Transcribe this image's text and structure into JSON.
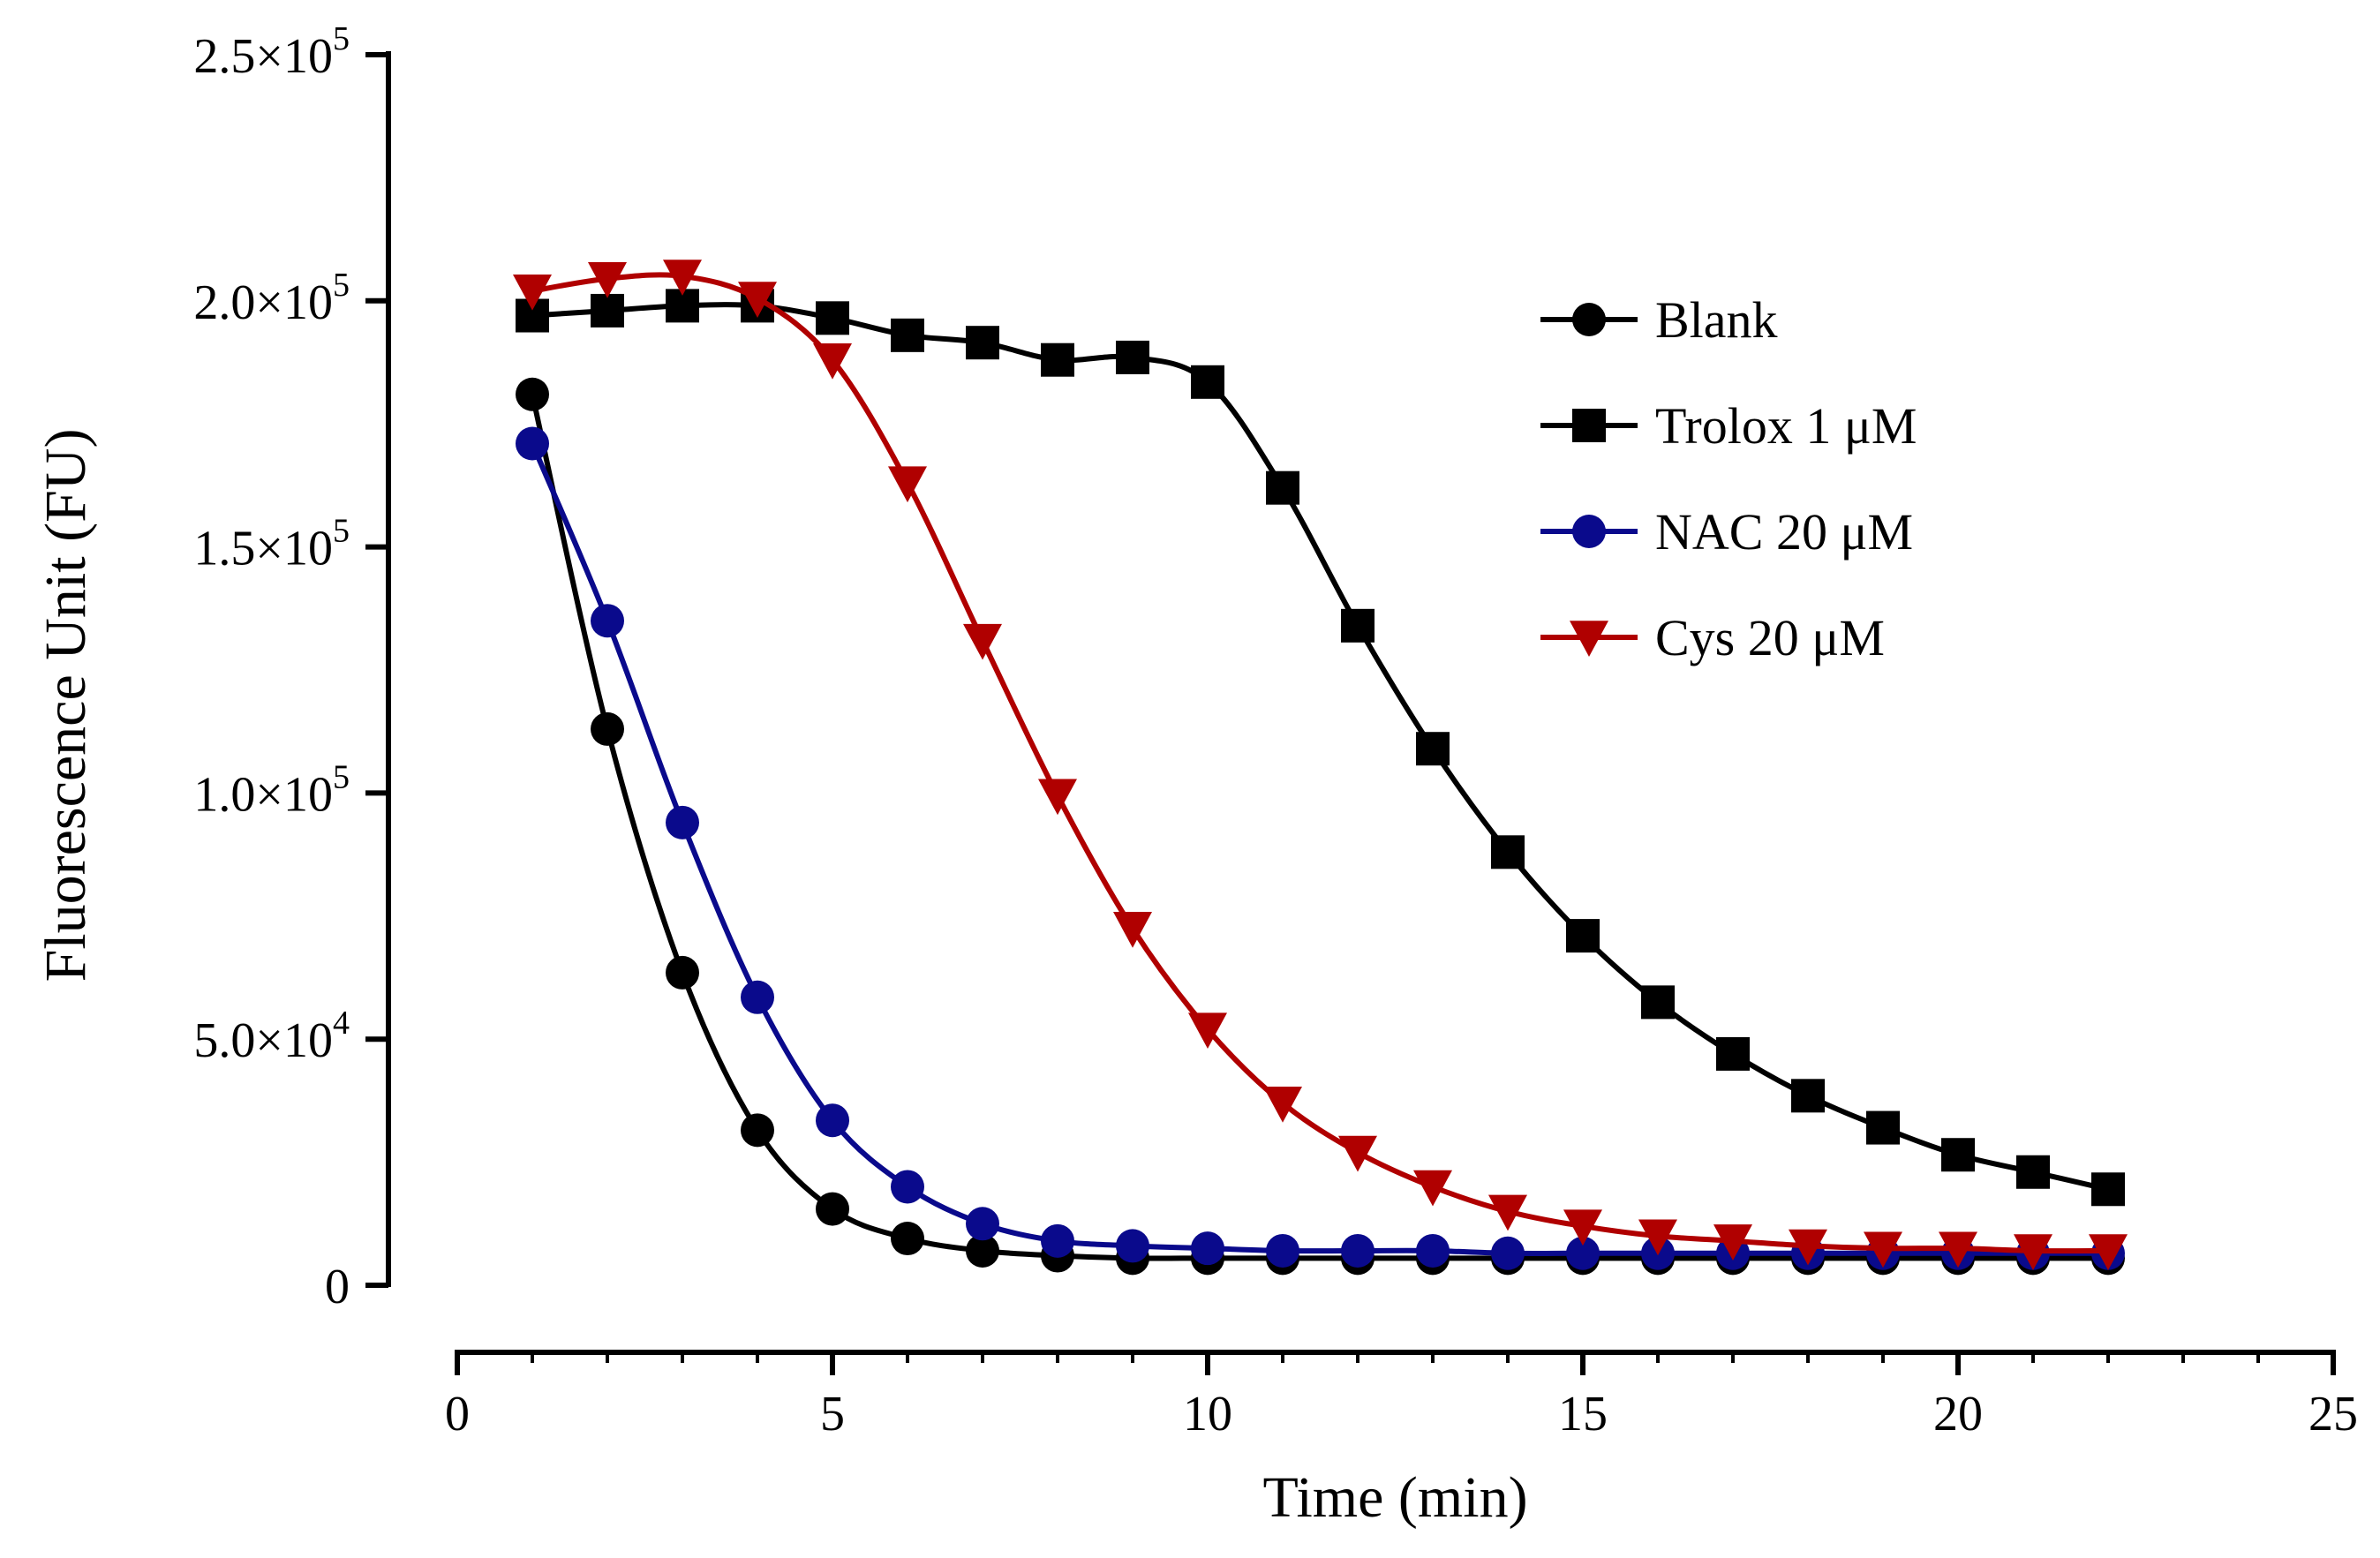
{
  "chart_data": {
    "type": "line",
    "title": "",
    "xlabel": "Time (min)",
    "ylabel": "Fluorescence Unit (FU)",
    "xlim": [
      0,
      25
    ],
    "ylim": [
      0,
      250000
    ],
    "x_ticks": [
      {
        "value": 0,
        "label": "0"
      },
      {
        "value": 5,
        "label": "5"
      },
      {
        "value": 10,
        "label": "10"
      },
      {
        "value": 15,
        "label": "15"
      },
      {
        "value": 20,
        "label": "20"
      },
      {
        "value": 25,
        "label": "25"
      }
    ],
    "y_ticks": [
      {
        "value": 0,
        "mantissa": "0",
        "exponent": ""
      },
      {
        "value": 50000,
        "mantissa": "5.0×10",
        "exponent": "4"
      },
      {
        "value": 100000,
        "mantissa": "1.0×10",
        "exponent": "5"
      },
      {
        "value": 150000,
        "mantissa": "1.5×10",
        "exponent": "5"
      },
      {
        "value": 200000,
        "mantissa": "2.0×10",
        "exponent": "5"
      },
      {
        "value": 250000,
        "mantissa": "2.5×10",
        "exponent": "5"
      }
    ],
    "grid": false,
    "legend_position": "top-right",
    "x": [
      1,
      2,
      3,
      4,
      5,
      6,
      7,
      8,
      9,
      10,
      11,
      12,
      13,
      14,
      15,
      16,
      17,
      18,
      19,
      20,
      21,
      22
    ],
    "series": [
      {
        "name": "Blank",
        "color": "#000000",
        "marker": "circle",
        "values": [
          181000,
          113000,
          63500,
          31500,
          15500,
          9500,
          7000,
          6000,
          5500,
          5500,
          5500,
          5500,
          5500,
          5500,
          5500,
          5500,
          5500,
          5500,
          5500,
          5500,
          5500,
          5500
        ]
      },
      {
        "name": "Trolox 1 μM",
        "color": "#000000",
        "marker": "square",
        "values": [
          197000,
          198000,
          199000,
          199000,
          196500,
          193000,
          191500,
          188000,
          188500,
          183500,
          162000,
          134000,
          109000,
          88000,
          71000,
          57500,
          47000,
          38500,
          32000,
          26500,
          23000,
          19500
        ]
      },
      {
        "name": "NAC 20 μM",
        "color": "#0a0a8c",
        "marker": "circle",
        "values": [
          171000,
          135000,
          94000,
          58500,
          33500,
          20000,
          12500,
          9000,
          8000,
          7500,
          7000,
          7000,
          7000,
          6500,
          6500,
          6500,
          6500,
          6500,
          6500,
          6500,
          6500,
          6500
        ]
      },
      {
        "name": "Cys 20 μM",
        "color": "#b00000",
        "marker": "triangle-down",
        "values": [
          202000,
          204500,
          205000,
          200500,
          188000,
          163000,
          131000,
          99500,
          72500,
          52000,
          37000,
          27000,
          20000,
          15000,
          12000,
          10000,
          9000,
          8000,
          7500,
          7500,
          7000,
          7000
        ]
      }
    ]
  }
}
